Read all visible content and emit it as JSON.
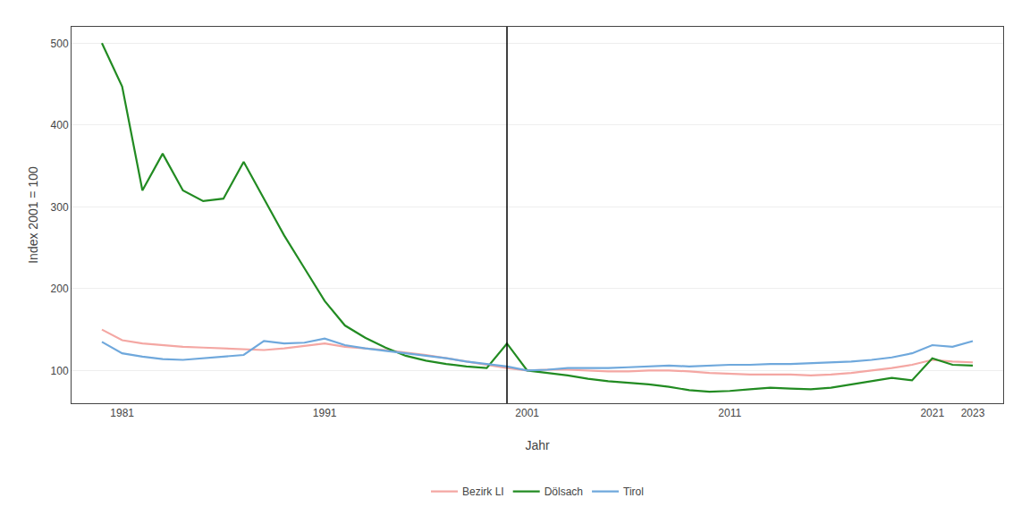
{
  "chart_data": {
    "type": "line",
    "xlabel": "Jahr",
    "ylabel": "Index 2001 = 100",
    "x": [
      1980,
      1981,
      1982,
      1983,
      1984,
      1985,
      1986,
      1987,
      1988,
      1989,
      1990,
      1991,
      1992,
      1993,
      1994,
      1995,
      1996,
      1997,
      1998,
      1999,
      2000,
      2001,
      2002,
      2003,
      2004,
      2005,
      2006,
      2007,
      2008,
      2009,
      2010,
      2011,
      2012,
      2013,
      2014,
      2015,
      2016,
      2017,
      2018,
      2019,
      2020,
      2021,
      2022,
      2023
    ],
    "series": [
      {
        "name": "Bezirk LI",
        "color": "#F4A7A3",
        "values": [
          150,
          137,
          133,
          131,
          129,
          128,
          127,
          126,
          125,
          127,
          130,
          133,
          129,
          127,
          125,
          122,
          119,
          115,
          111,
          107,
          103,
          100,
          101,
          101,
          100,
          99,
          99,
          100,
          100,
          99,
          97,
          96,
          95,
          95,
          95,
          94,
          95,
          97,
          100,
          103,
          107,
          113,
          111,
          110
        ]
      },
      {
        "name": "Dölsach",
        "color": "#228B22",
        "values": [
          500,
          447,
          320,
          365,
          320,
          307,
          310,
          355,
          310,
          265,
          225,
          185,
          155,
          140,
          128,
          118,
          112,
          108,
          105,
          103,
          133,
          100,
          97,
          94,
          90,
          87,
          85,
          83,
          80,
          76,
          74,
          75,
          77,
          79,
          78,
          77,
          79,
          83,
          87,
          91,
          88,
          115,
          107,
          106
        ]
      },
      {
        "name": "Tirol",
        "color": "#6FA8DC",
        "values": [
          135,
          121,
          117,
          114,
          113,
          115,
          117,
          119,
          136,
          133,
          134,
          139,
          131,
          127,
          124,
          121,
          118,
          115,
          111,
          108,
          105,
          100,
          101,
          103,
          103,
          103,
          104,
          105,
          106,
          105,
          106,
          107,
          107,
          108,
          108,
          109,
          110,
          111,
          113,
          116,
          121,
          131,
          129,
          136
        ]
      }
    ],
    "vline_x": 2000,
    "xlim": [
      1978.5,
      2024.5
    ],
    "xticks": [
      1981,
      1991,
      2001,
      2011,
      2021,
      2023
    ],
    "ylim": [
      60,
      520
    ],
    "yticks": [
      100,
      200,
      300,
      400,
      500
    ],
    "grid": "y",
    "legend": "bottom"
  }
}
